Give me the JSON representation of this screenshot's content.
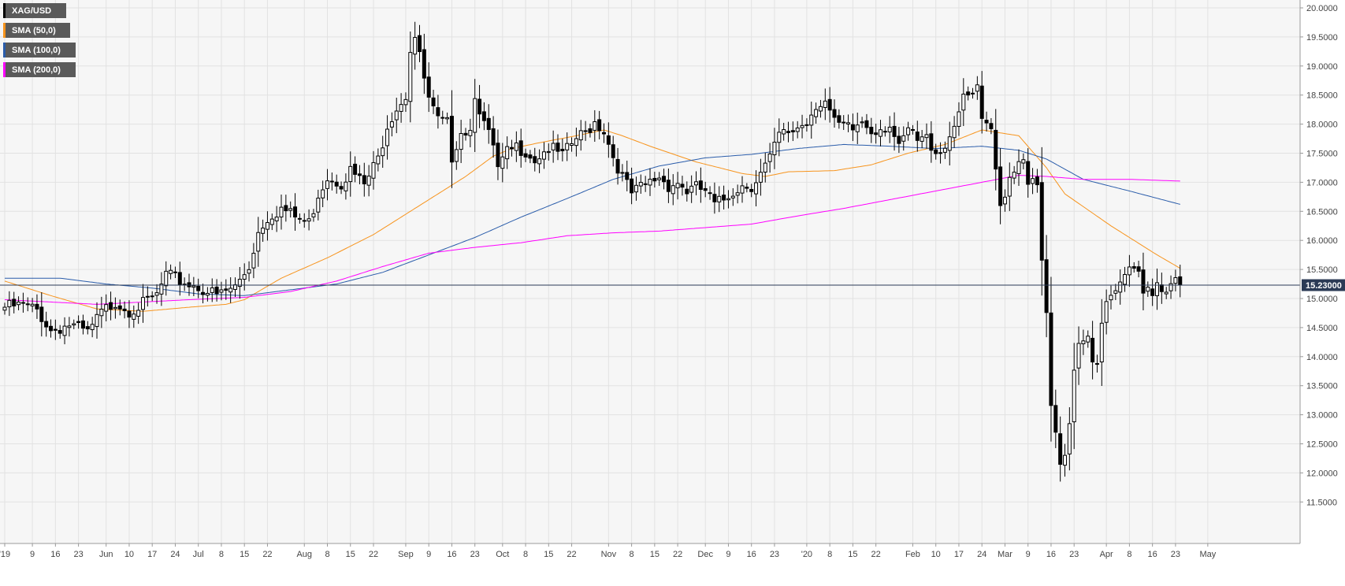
{
  "chart_data": {
    "type": "candlestick",
    "symbol": "XAG/USD",
    "current_price_label": "15.23000",
    "current_price": 15.23,
    "y_range": [
      11.3,
      20.05
    ],
    "y_ticks": [
      "20.0000",
      "19.5000",
      "19.0000",
      "18.5000",
      "18.0000",
      "17.5000",
      "17.0000",
      "16.5000",
      "16.0000",
      "15.5000",
      "15.0000",
      "14.5000",
      "14.0000",
      "13.5000",
      "13.0000",
      "12.5000",
      "12.0000",
      "11.5000"
    ],
    "y_tick_values": [
      20.0,
      19.5,
      19.0,
      18.5,
      18.0,
      17.5,
      17.0,
      16.5,
      16.0,
      15.5,
      15.0,
      14.5,
      14.0,
      13.5,
      13.0,
      12.5,
      12.0,
      11.5
    ],
    "x_ticks": [
      {
        "label": "'19",
        "index": 0
      },
      {
        "label": "9",
        "index": 6
      },
      {
        "label": "16",
        "index": 11
      },
      {
        "label": "23",
        "index": 16
      },
      {
        "label": "Jun",
        "index": 22
      },
      {
        "label": "10",
        "index": 27
      },
      {
        "label": "17",
        "index": 32
      },
      {
        "label": "24",
        "index": 37
      },
      {
        "label": "Jul",
        "index": 42
      },
      {
        "label": "8",
        "index": 47
      },
      {
        "label": "15",
        "index": 52
      },
      {
        "label": "22",
        "index": 57
      },
      {
        "label": "Aug",
        "index": 65
      },
      {
        "label": "8",
        "index": 70
      },
      {
        "label": "15",
        "index": 75
      },
      {
        "label": "22",
        "index": 80
      },
      {
        "label": "Sep",
        "index": 87
      },
      {
        "label": "9",
        "index": 92
      },
      {
        "label": "16",
        "index": 97
      },
      {
        "label": "23",
        "index": 102
      },
      {
        "label": "Oct",
        "index": 108
      },
      {
        "label": "8",
        "index": 113
      },
      {
        "label": "15",
        "index": 118
      },
      {
        "label": "22",
        "index": 123
      },
      {
        "label": "Nov",
        "index": 131
      },
      {
        "label": "8",
        "index": 136
      },
      {
        "label": "15",
        "index": 141
      },
      {
        "label": "22",
        "index": 146
      },
      {
        "label": "Dec",
        "index": 152
      },
      {
        "label": "9",
        "index": 157
      },
      {
        "label": "16",
        "index": 162
      },
      {
        "label": "23",
        "index": 167
      },
      {
        "label": "'20",
        "index": 174
      },
      {
        "label": "8",
        "index": 179
      },
      {
        "label": "15",
        "index": 184
      },
      {
        "label": "22",
        "index": 189
      },
      {
        "label": "Feb",
        "index": 197
      },
      {
        "label": "10",
        "index": 202
      },
      {
        "label": "17",
        "index": 207
      },
      {
        "label": "24",
        "index": 212
      },
      {
        "label": "Mar",
        "index": 217
      },
      {
        "label": "9",
        "index": 222
      },
      {
        "label": "16",
        "index": 227
      },
      {
        "label": "23",
        "index": 232
      },
      {
        "label": "Apr",
        "index": 239
      },
      {
        "label": "8",
        "index": 244
      },
      {
        "label": "16",
        "index": 249
      },
      {
        "label": "23",
        "index": 254
      },
      {
        "label": "May",
        "index": 261
      }
    ],
    "legend": [
      {
        "name": "XAG/USD",
        "color": "#000000"
      },
      {
        "name": "SMA (50,0)",
        "color": "#f7941d"
      },
      {
        "name": "SMA (100,0)",
        "color": "#2a5caa"
      },
      {
        "name": "SMA (200,0)",
        "color": "#ff00ff"
      }
    ],
    "close_anchors": [
      [
        0,
        14.85
      ],
      [
        4,
        14.88
      ],
      [
        7,
        14.8
      ],
      [
        10,
        14.45
      ],
      [
        14,
        14.55
      ],
      [
        18,
        14.4
      ],
      [
        21,
        14.75
      ],
      [
        24,
        14.95
      ],
      [
        27,
        14.8
      ],
      [
        30,
        14.9
      ],
      [
        33,
        15.05
      ],
      [
        35,
        15.4
      ],
      [
        38,
        15.3
      ],
      [
        42,
        15.2
      ],
      [
        46,
        15.05
      ],
      [
        50,
        15.2
      ],
      [
        53,
        15.55
      ],
      [
        55,
        16.15
      ],
      [
        57,
        16.4
      ],
      [
        60,
        16.55
      ],
      [
        63,
        16.4
      ],
      [
        66,
        16.3
      ],
      [
        68,
        16.8
      ],
      [
        70,
        17.1
      ],
      [
        73,
        17.0
      ],
      [
        75,
        17.2
      ],
      [
        78,
        16.95
      ],
      [
        81,
        17.4
      ],
      [
        83,
        18.0
      ],
      [
        85,
        18.3
      ],
      [
        87,
        18.5
      ],
      [
        88,
        19.3
      ],
      [
        89,
        19.5
      ],
      [
        90,
        19.15
      ],
      [
        92,
        18.4
      ],
      [
        94,
        18.05
      ],
      [
        96,
        18.0
      ],
      [
        97,
        17.45
      ],
      [
        99,
        17.9
      ],
      [
        101,
        17.9
      ],
      [
        102,
        18.55
      ],
      [
        104,
        18.0
      ],
      [
        106,
        17.6
      ],
      [
        107,
        17.2
      ],
      [
        109,
        17.5
      ],
      [
        111,
        17.6
      ],
      [
        113,
        17.55
      ],
      [
        115,
        17.4
      ],
      [
        118,
        17.6
      ],
      [
        121,
        17.45
      ],
      [
        124,
        17.75
      ],
      [
        126,
        17.85
      ],
      [
        128,
        18.05
      ],
      [
        130,
        17.9
      ],
      [
        132,
        17.45
      ],
      [
        134,
        17.1
      ],
      [
        136,
        16.8
      ],
      [
        138,
        16.9
      ],
      [
        140,
        17.0
      ],
      [
        142,
        17.1
      ],
      [
        144,
        16.95
      ],
      [
        146,
        17.0
      ],
      [
        148,
        16.85
      ],
      [
        150,
        16.9
      ],
      [
        152,
        16.85
      ],
      [
        154,
        16.6
      ],
      [
        156,
        16.7
      ],
      [
        158,
        16.85
      ],
      [
        160,
        16.95
      ],
      [
        162,
        16.95
      ],
      [
        164,
        17.15
      ],
      [
        166,
        17.4
      ],
      [
        168,
        17.8
      ],
      [
        170,
        17.85
      ],
      [
        172,
        17.95
      ],
      [
        174,
        18.05
      ],
      [
        176,
        18.35
      ],
      [
        178,
        18.4
      ],
      [
        180,
        18.0
      ],
      [
        182,
        17.95
      ],
      [
        184,
        17.9
      ],
      [
        186,
        18.05
      ],
      [
        188,
        17.9
      ],
      [
        190,
        17.95
      ],
      [
        192,
        18.0
      ],
      [
        194,
        17.55
      ],
      [
        196,
        17.9
      ],
      [
        198,
        17.7
      ],
      [
        200,
        17.75
      ],
      [
        202,
        17.55
      ],
      [
        204,
        17.6
      ],
      [
        206,
        18.05
      ],
      [
        208,
        18.4
      ],
      [
        210,
        18.5
      ],
      [
        211,
        18.65
      ],
      [
        212,
        18.0
      ],
      [
        214,
        17.85
      ],
      [
        215,
        17.2
      ],
      [
        216,
        16.6
      ],
      [
        218,
        17.1
      ],
      [
        220,
        17.4
      ],
      [
        221,
        17.45
      ],
      [
        222,
        17.05
      ],
      [
        224,
        16.9
      ],
      [
        225,
        15.6
      ],
      [
        226,
        14.75
      ],
      [
        227,
        13.1
      ],
      [
        228,
        12.6
      ],
      [
        229,
        12.1
      ],
      [
        230,
        12.2
      ],
      [
        231,
        12.9
      ],
      [
        232,
        13.8
      ],
      [
        233,
        14.3
      ],
      [
        235,
        14.4
      ],
      [
        236,
        14.0
      ],
      [
        237,
        13.95
      ],
      [
        238,
        14.5
      ],
      [
        239,
        14.9
      ],
      [
        241,
        15.05
      ],
      [
        243,
        15.4
      ],
      [
        245,
        15.6
      ],
      [
        246,
        15.5
      ],
      [
        247,
        15.1
      ],
      [
        248,
        15.25
      ],
      [
        249,
        15.1
      ],
      [
        250,
        15.3
      ],
      [
        251,
        15.2
      ],
      [
        252,
        15.15
      ],
      [
        253,
        15.25
      ],
      [
        255,
        15.23
      ]
    ],
    "sma50_anchors": [
      [
        0,
        15.3
      ],
      [
        10,
        15.05
      ],
      [
        20,
        14.82
      ],
      [
        30,
        14.78
      ],
      [
        40,
        14.85
      ],
      [
        48,
        14.9
      ],
      [
        52,
        14.98
      ],
      [
        60,
        15.35
      ],
      [
        70,
        15.7
      ],
      [
        80,
        16.1
      ],
      [
        90,
        16.6
      ],
      [
        100,
        17.1
      ],
      [
        106,
        17.45
      ],
      [
        110,
        17.58
      ],
      [
        116,
        17.68
      ],
      [
        124,
        17.8
      ],
      [
        130,
        17.9
      ],
      [
        134,
        17.8
      ],
      [
        140,
        17.62
      ],
      [
        150,
        17.35
      ],
      [
        160,
        17.15
      ],
      [
        165,
        17.1
      ],
      [
        170,
        17.18
      ],
      [
        180,
        17.2
      ],
      [
        188,
        17.3
      ],
      [
        196,
        17.5
      ],
      [
        204,
        17.65
      ],
      [
        212,
        17.9
      ],
      [
        220,
        17.8
      ],
      [
        226,
        17.25
      ],
      [
        230,
        16.8
      ],
      [
        240,
        16.25
      ],
      [
        250,
        15.75
      ],
      [
        255,
        15.52
      ]
    ],
    "sma100_anchors": [
      [
        0,
        15.35
      ],
      [
        12,
        15.35
      ],
      [
        22,
        15.25
      ],
      [
        32,
        15.18
      ],
      [
        42,
        15.08
      ],
      [
        52,
        15.05
      ],
      [
        62,
        15.15
      ],
      [
        72,
        15.25
      ],
      [
        82,
        15.45
      ],
      [
        92,
        15.75
      ],
      [
        102,
        16.05
      ],
      [
        112,
        16.4
      ],
      [
        122,
        16.72
      ],
      [
        132,
        17.05
      ],
      [
        142,
        17.28
      ],
      [
        152,
        17.42
      ],
      [
        162,
        17.48
      ],
      [
        172,
        17.58
      ],
      [
        182,
        17.65
      ],
      [
        192,
        17.62
      ],
      [
        202,
        17.58
      ],
      [
        212,
        17.62
      ],
      [
        220,
        17.55
      ],
      [
        226,
        17.4
      ],
      [
        234,
        17.05
      ],
      [
        244,
        16.85
      ],
      [
        255,
        16.62
      ]
    ],
    "sma200_anchors": [
      [
        0,
        14.98
      ],
      [
        20,
        14.9
      ],
      [
        40,
        14.98
      ],
      [
        52,
        15.02
      ],
      [
        62,
        15.12
      ],
      [
        72,
        15.3
      ],
      [
        82,
        15.55
      ],
      [
        92,
        15.78
      ],
      [
        102,
        15.88
      ],
      [
        112,
        15.96
      ],
      [
        122,
        16.08
      ],
      [
        132,
        16.13
      ],
      [
        142,
        16.16
      ],
      [
        152,
        16.22
      ],
      [
        162,
        16.28
      ],
      [
        172,
        16.42
      ],
      [
        182,
        16.55
      ],
      [
        192,
        16.7
      ],
      [
        202,
        16.85
      ],
      [
        212,
        17.0
      ],
      [
        220,
        17.12
      ],
      [
        226,
        17.1
      ],
      [
        234,
        17.05
      ],
      [
        244,
        17.05
      ],
      [
        255,
        17.02
      ]
    ]
  }
}
